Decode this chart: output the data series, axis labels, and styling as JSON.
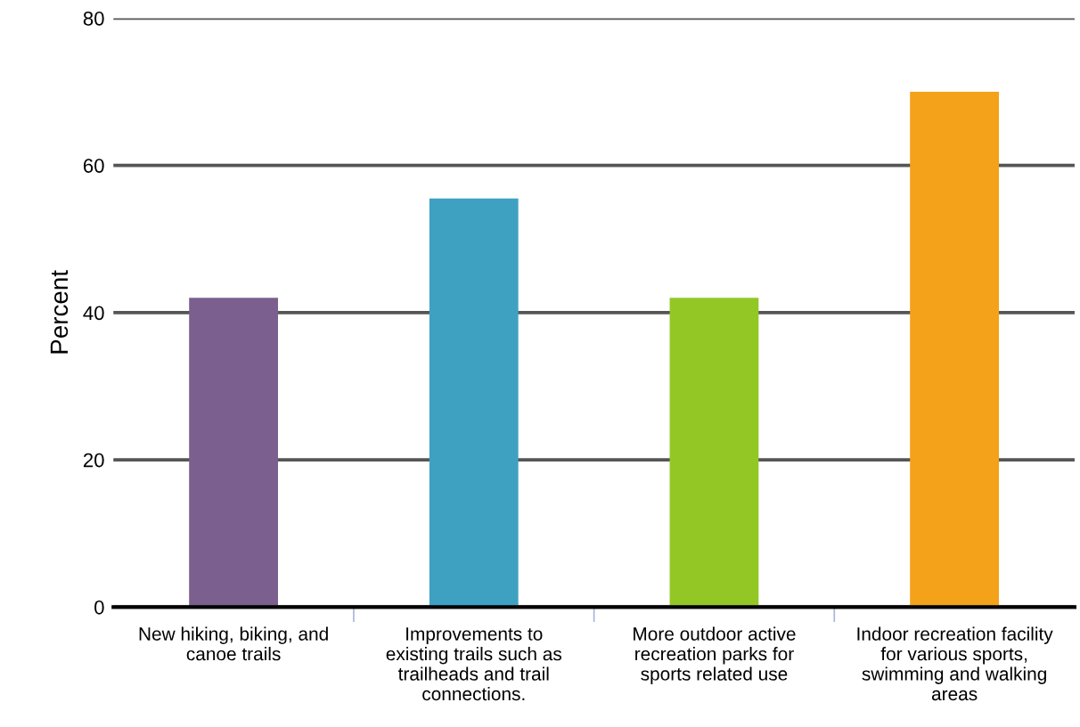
{
  "chart_data": {
    "type": "bar",
    "ylabel": "Percent",
    "categories": [
      "New hiking, biking, and\ncanoe trails",
      "Improvements to\nexisting trails such as\ntrailheads and trail\nconnections.",
      "More outdoor active\nrecreation parks for\nsports related use",
      "Indoor recreation facility\nfor various sports,\nswimming and walking\nareas"
    ],
    "values": [
      42,
      55.5,
      42,
      70
    ],
    "colors": [
      "#7b5f8e",
      "#3fa1c2",
      "#93c726",
      "#f4a21a"
    ],
    "ylim": [
      0,
      80
    ],
    "yticks": [
      0,
      20,
      40,
      60,
      80
    ],
    "grid": "y"
  }
}
